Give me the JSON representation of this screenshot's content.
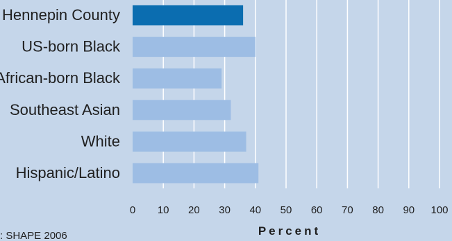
{
  "chart_data": {
    "type": "bar",
    "orientation": "horizontal",
    "categories": [
      "Hennepin County",
      "US-born Black",
      "African-born Black",
      "Southeast Asian",
      "White",
      "Hispanic/Latino"
    ],
    "values": [
      36,
      40,
      29,
      32,
      37,
      41
    ],
    "highlight_index": 0,
    "xlabel": "Percent",
    "xlim": [
      0,
      100
    ],
    "xticks": [
      "0",
      "10",
      "20",
      "30",
      "40",
      "50",
      "60",
      "70",
      "80",
      "90",
      "100"
    ],
    "grid": true,
    "colors": {
      "highlight": "#0b6db0",
      "bar": "#9dbde4",
      "background": "#c5d6ea",
      "gridline": "#ffffff"
    }
  },
  "source_text": ": SHAPE 2006"
}
